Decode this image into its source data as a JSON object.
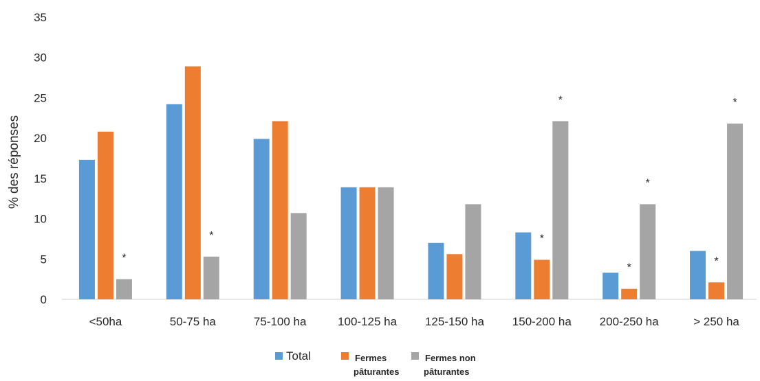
{
  "chart_data": {
    "type": "bar",
    "title": "",
    "xlabel": "",
    "ylabel": "% des réponses",
    "ylim": [
      0,
      35
    ],
    "yticks": [
      "0",
      "5",
      "10",
      "15",
      "20",
      "25",
      "30",
      "35"
    ],
    "grid": false,
    "legend_position": "bottom",
    "categories": [
      "<50ha",
      "50-75 ha",
      "75-100 ha",
      "100-125 ha",
      "125-150 ha",
      "150-200 ha",
      "200-250 ha",
      "> 250 ha"
    ],
    "series": [
      {
        "name": "Total",
        "legend_lines": [
          "Total"
        ],
        "color": "#5B9BD5",
        "values": [
          17.3,
          24.2,
          19.9,
          13.9,
          7.0,
          8.3,
          3.3,
          6.0
        ]
      },
      {
        "name": "Fermes pâturantes",
        "legend_lines": [
          "Fermes",
          "pâturantes"
        ],
        "color": "#ED7D31",
        "values": [
          20.8,
          28.9,
          22.1,
          13.9,
          5.6,
          4.9,
          1.3,
          2.1
        ]
      },
      {
        "name": "Fermes non pâturantes",
        "legend_lines": [
          "Fermes non",
          "pâturantes"
        ],
        "color": "#A5A5A5",
        "values": [
          2.5,
          5.3,
          10.7,
          13.9,
          11.8,
          22.1,
          11.8,
          21.8
        ]
      }
    ],
    "significance_marker": "*",
    "annotations": [
      {
        "category": "<50ha",
        "series": "Fermes non pâturantes",
        "text": "*"
      },
      {
        "category": "50-75 ha",
        "series": "Fermes non pâturantes",
        "text": "*"
      },
      {
        "category": "150-200 ha",
        "series": "Fermes pâturantes",
        "text": "*"
      },
      {
        "category": "150-200 ha",
        "series": "Fermes non pâturantes",
        "text": "*"
      },
      {
        "category": "200-250 ha",
        "series": "Fermes pâturantes",
        "text": "*"
      },
      {
        "category": "200-250 ha",
        "series": "Fermes non pâturantes",
        "text": "*"
      },
      {
        "category": "> 250 ha",
        "series": "Fermes pâturantes",
        "text": "*"
      },
      {
        "category": "> 250 ha",
        "series": "Fermes non pâturantes",
        "text": "*"
      }
    ]
  }
}
